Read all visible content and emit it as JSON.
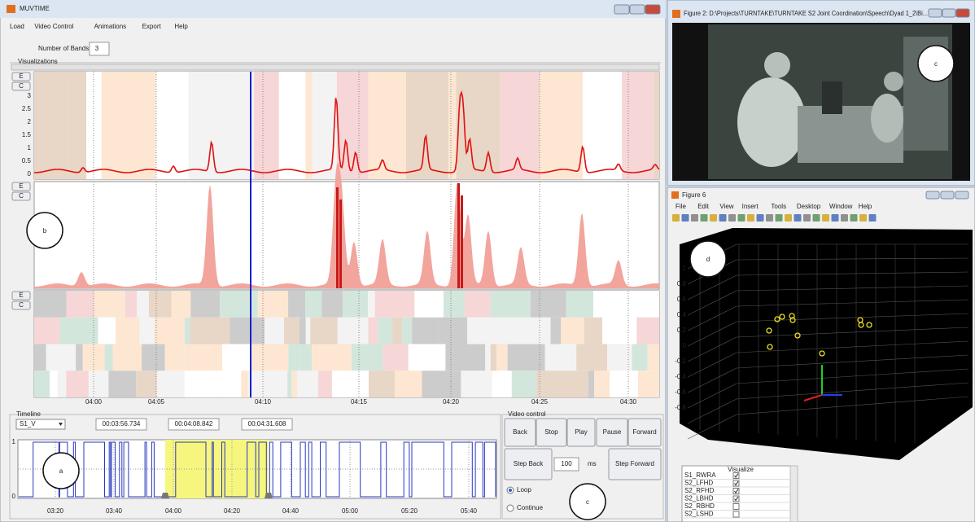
{
  "main_window": {
    "title": "MUVTIME",
    "menu": [
      "Load",
      "Video Control",
      "Animations",
      "Export",
      "Help"
    ],
    "bands_label": "Number of Bands",
    "bands_value": 3,
    "visualizations_label": "Visualizations",
    "panels": [
      {
        "buttons": [
          "E",
          "C"
        ],
        "yticks": [
          3,
          2.5,
          2,
          1.5,
          1,
          0.5,
          0
        ]
      },
      {
        "buttons": [
          "E",
          "C"
        ]
      },
      {
        "buttons": [
          "E",
          "C"
        ]
      }
    ],
    "time_axis": [
      "04:00",
      "04:05",
      "04:10",
      "04:15",
      "04:20",
      "04:25",
      "04:30"
    ]
  },
  "timeline": {
    "label": "Timeline",
    "stream": "S1_V",
    "times": [
      "00:03:56.734",
      "00:04:08.842",
      "00:04:31.608"
    ],
    "yticks": [
      1,
      0
    ],
    "xticks": [
      "03:20",
      "03:40",
      "04:00",
      "04:20",
      "04:40",
      "05:00",
      "05:20",
      "05:40"
    ]
  },
  "video_control": {
    "label": "Video control",
    "buttons": [
      "Back",
      "Stop",
      "Play",
      "Pause",
      "Forward"
    ],
    "step_back": "Step Back",
    "step_value": 100,
    "step_unit": "ms",
    "step_forward": "Step Forward",
    "options": [
      "Loop",
      "Continue"
    ]
  },
  "figure2": {
    "title": "Figure 2: D:\\Projects\\TURNTAKE\\TURNTAKE S2 Joint Coordination\\Speech\\Dyad 1_2\\Bi..."
  },
  "figure6": {
    "title": "Figure 6",
    "menu": [
      "File",
      "Edit",
      "View",
      "Insert",
      "Tools",
      "Desktop",
      "Window",
      "Help"
    ],
    "zticks": [
      1,
      0.8,
      0.6,
      0.4,
      0.2,
      0,
      -0.2,
      -0.4,
      -0.6,
      -0.8
    ],
    "table": {
      "header": "Visualize",
      "rows": [
        "S1_RWRA",
        "S2_LFHD",
        "S2_RFHD",
        "S2_LBHD",
        "S2_RBHD",
        "S2_LSHD"
      ],
      "checked": [
        true,
        true,
        true,
        true,
        false,
        false
      ]
    }
  },
  "annotations": [
    "a",
    "b",
    "c",
    "c",
    "d"
  ]
}
